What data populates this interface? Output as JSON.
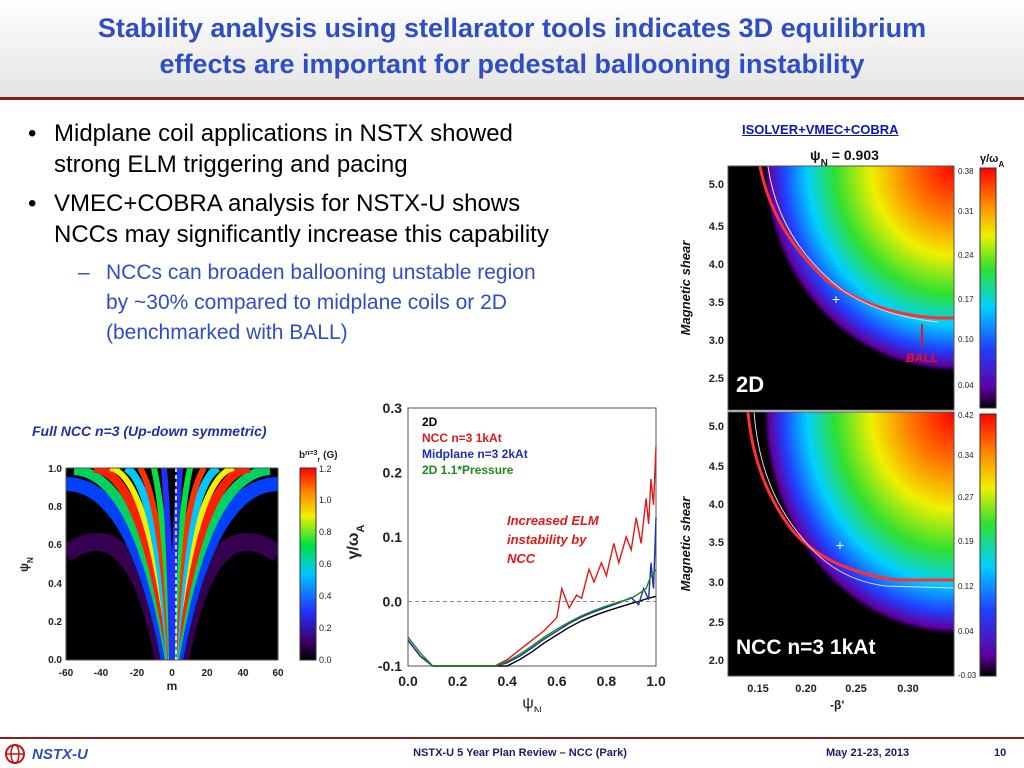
{
  "title": {
    "line1": "Stability analysis using stellarator tools indicates 3D equilibrium",
    "line2": "effects are important for pedestal ballooning instability"
  },
  "bullets": [
    {
      "line1": "Midplane coil applications in NSTX showed",
      "line2": "strong ELM triggering and pacing"
    },
    {
      "line1": "VMEC+COBRA analysis for NSTX-U shows",
      "line2": "NCCs may significantly increase this capability"
    }
  ],
  "sub_bullet": {
    "line1": "NCCs can broaden ballooning unstable region",
    "line2": "by ~30% compared to midplane coils or 2D",
    "line3": "(benchmarked with BALL)"
  },
  "bullet_glyph": "•",
  "dash_glyph": "–",
  "left_plot": {
    "caption": "Full NCC n=3 (Up-down symmetric)",
    "ylabel": "ψ",
    "ylabel_sub": "N",
    "xlabel": "m",
    "colorbar_label": "b",
    "colorbar_label_sup": "n=3",
    "colorbar_label_sub": "r",
    "colorbar_unit": "(G)"
  },
  "center_chart_legend": {
    "title": "2D",
    "l1": "NCC n=3 1kAt",
    "l2": "Midplane n=3 2kAt",
    "l3": "2D 1.1*Pressure"
  },
  "center_annotation": {
    "l1": "Increased ELM",
    "l2": "instability by",
    "l3": "NCC"
  },
  "right_panels": {
    "header": "ISOLVER+VMEC+COBRA",
    "psi_label": "ψ",
    "psi_sub": "N",
    "psi_value": "= 0.903",
    "ylabel": "Magnetic shear",
    "xlabel": "-β'",
    "cbar_label": "γ/ω",
    "cbar_label_sub": "A",
    "top_tag": "2D",
    "bottom_tag": "NCC n=3 1kAt",
    "ball_label": "BALL"
  },
  "footer": {
    "logo_text": "NSTX-U",
    "center": "NSTX-U 5 Year Plan Review – NCC (Park)",
    "date": "May 21-23, 2013",
    "page": "10"
  },
  "colors": {
    "title_blue": "#2f4ec4",
    "ncc_red": "#e01818",
    "midplane_blue": "#1f2faa",
    "pressure_green": "#1a8a1a",
    "accent_red": "#8a1c1c"
  },
  "chart_data": [
    {
      "type": "line",
      "xlabel": "ψN",
      "ylabel": "γ/ωA",
      "xlim": [
        0.0,
        1.0
      ],
      "ylim": [
        -0.1,
        0.3
      ],
      "x_ticks": [
        "0.0",
        "0.2",
        "0.4",
        "0.6",
        "0.8",
        "1.0"
      ],
      "y_ticks": [
        "-0.1",
        "0.0",
        "0.1",
        "0.2",
        "0.3"
      ],
      "legend_title": "2D",
      "series": [
        {
          "name": "2D",
          "color": "#000000",
          "x": [
            0.0,
            0.05,
            0.1,
            0.15,
            0.2,
            0.25,
            0.3,
            0.35,
            0.4,
            0.45,
            0.5,
            0.55,
            0.6,
            0.65,
            0.7,
            0.75,
            0.8,
            0.85,
            0.9,
            0.93,
            0.96,
            0.98,
            1.0
          ],
          "y": [
            -0.06,
            -0.085,
            -0.1,
            -0.11,
            -0.11,
            -0.11,
            -0.11,
            -0.105,
            -0.1,
            -0.09,
            -0.078,
            -0.064,
            -0.052,
            -0.04,
            -0.03,
            -0.022,
            -0.015,
            -0.009,
            -0.003,
            0.0,
            0.004,
            0.006,
            0.008
          ]
        },
        {
          "name": "NCC n=3 1kAt",
          "color": "#e01818",
          "x": [
            0.0,
            0.05,
            0.1,
            0.15,
            0.2,
            0.25,
            0.3,
            0.35,
            0.4,
            0.45,
            0.5,
            0.55,
            0.6,
            0.62,
            0.65,
            0.68,
            0.7,
            0.73,
            0.75,
            0.78,
            0.8,
            0.83,
            0.85,
            0.88,
            0.9,
            0.92,
            0.94,
            0.96,
            0.97,
            0.98,
            0.99,
            1.0
          ],
          "y": [
            -0.06,
            -0.085,
            -0.1,
            -0.11,
            -0.11,
            -0.11,
            -0.11,
            -0.1,
            -0.09,
            -0.075,
            -0.06,
            -0.045,
            -0.025,
            0.02,
            -0.01,
            0.01,
            0.005,
            0.05,
            0.03,
            0.06,
            0.04,
            0.09,
            0.06,
            0.1,
            0.08,
            0.13,
            0.09,
            0.16,
            0.12,
            0.19,
            0.15,
            0.24
          ]
        },
        {
          "name": "Midplane n=3 2kAt",
          "color": "#1f2faa",
          "x": [
            0.0,
            0.05,
            0.1,
            0.15,
            0.2,
            0.25,
            0.3,
            0.35,
            0.4,
            0.45,
            0.5,
            0.55,
            0.6,
            0.65,
            0.7,
            0.75,
            0.8,
            0.85,
            0.9,
            0.93,
            0.95,
            0.97,
            0.98,
            0.99,
            1.0
          ],
          "y": [
            -0.06,
            -0.085,
            -0.1,
            -0.11,
            -0.11,
            -0.11,
            -0.11,
            -0.1,
            -0.095,
            -0.085,
            -0.072,
            -0.058,
            -0.046,
            -0.034,
            -0.024,
            -0.016,
            -0.009,
            -0.002,
            0.006,
            -0.005,
            0.02,
            0.003,
            0.06,
            0.02,
            0.13
          ]
        },
        {
          "name": "2D 1.1*Pressure",
          "color": "#1a8a1a",
          "x": [
            0.0,
            0.05,
            0.1,
            0.15,
            0.2,
            0.25,
            0.3,
            0.35,
            0.4,
            0.45,
            0.5,
            0.55,
            0.6,
            0.65,
            0.7,
            0.75,
            0.8,
            0.85,
            0.9,
            0.93,
            0.96,
            0.98,
            1.0
          ],
          "y": [
            -0.055,
            -0.08,
            -0.1,
            -0.11,
            -0.11,
            -0.11,
            -0.11,
            -0.1,
            -0.093,
            -0.082,
            -0.069,
            -0.055,
            -0.043,
            -0.032,
            -0.022,
            -0.014,
            -0.007,
            -0.001,
            0.005,
            0.012,
            0.02,
            0.04,
            0.05
          ]
        }
      ]
    },
    {
      "type": "heatmap",
      "title": "",
      "xlabel": "m",
      "ylabel": "ψN",
      "xlim": [
        -60,
        60
      ],
      "ylim": [
        0.0,
        1.0
      ],
      "x_ticks": [
        "-60",
        "-40",
        "-20",
        "0",
        "20",
        "40",
        "60"
      ],
      "y_ticks": [
        "0.0",
        "0.2",
        "0.4",
        "0.6",
        "0.8",
        "1.0"
      ],
      "colorbar_ticks": [
        "0.0",
        "0.2",
        "0.4",
        "0.6",
        "0.8",
        "1.0",
        "1.2"
      ]
    },
    {
      "type": "heatmap",
      "label": "2D",
      "xlabel": "-β'",
      "ylabel": "Magnetic shear",
      "y_ticks": [
        "2.5",
        "3.0",
        "3.5",
        "4.0",
        "4.5",
        "5.0"
      ],
      "colorbar_ticks": [
        "0.04",
        "0.10",
        "0.17",
        "0.24",
        "0.31",
        "0.38"
      ]
    },
    {
      "type": "heatmap",
      "label": "NCC n=3 1kAt",
      "xlabel": "-β'",
      "ylabel": "Magnetic shear",
      "x_ticks": [
        "0.15",
        "0.20",
        "0.25",
        "0.30"
      ],
      "y_ticks": [
        "2.0",
        "2.5",
        "3.0",
        "3.5",
        "4.0",
        "4.5",
        "5.0"
      ],
      "colorbar_ticks": [
        "-0.03",
        "0.04",
        "0.12",
        "0.19",
        "0.27",
        "0.34",
        "0.42"
      ]
    }
  ]
}
